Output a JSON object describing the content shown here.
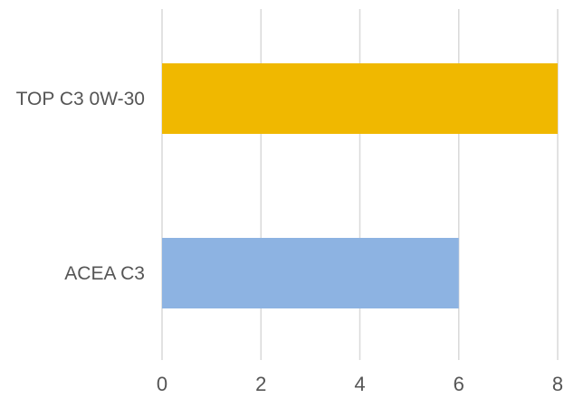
{
  "chart_data": {
    "type": "bar",
    "orientation": "horizontal",
    "categories": [
      "TOP C3 0W-30",
      "ACEA C3"
    ],
    "values": [
      8,
      6
    ],
    "colors": [
      "#f0b800",
      "#8db3e2"
    ],
    "xlim": [
      0,
      8
    ],
    "xticks": [
      0,
      2,
      4,
      6,
      8
    ],
    "grid": true,
    "title": "",
    "xlabel": "",
    "ylabel": "",
    "legend": "none"
  }
}
